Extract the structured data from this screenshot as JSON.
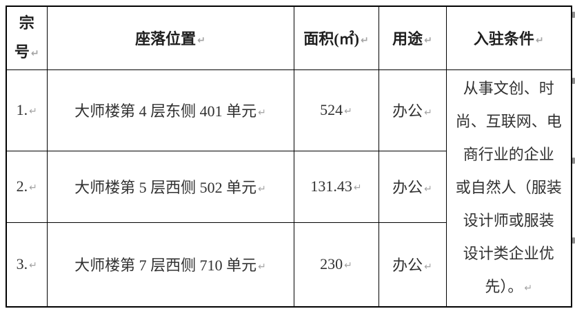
{
  "icons": {
    "pilcrow": "↵"
  },
  "colors": {
    "page_background": "#ffffff",
    "border": "#000000",
    "body_text": "#313131",
    "header_text": "#1f1f1f",
    "formatting_mark": "#a3a3a3"
  },
  "table": {
    "headers": {
      "serial_lines": [
        "宗",
        "号"
      ],
      "location": "座落位置",
      "area": "面积(㎡)",
      "usage": "用途",
      "condition": "入驻条件"
    },
    "rows": [
      {
        "serial": "1.",
        "location": "大师楼第 4 层东侧 401 单元",
        "area": "524",
        "usage": "办公"
      },
      {
        "serial": "2.",
        "location": "大师楼第 5 层西侧 502 单元",
        "area": "131.43",
        "usage": "办公"
      },
      {
        "serial": "3.",
        "location": "大师楼第 7 层西侧 710 单元",
        "area": "230",
        "usage": "办公"
      }
    ],
    "condition_lines": [
      "从事文创、时",
      "尚、互联网、电",
      "商行业的企业",
      "或自然人（服装",
      "设计师或服装",
      "设计类企业优",
      "先）。"
    ],
    "condition_text": "从事文创、时尚、互联网、电商行业的企业或自然人（服装设计师或服装设计类企业优先）。"
  }
}
